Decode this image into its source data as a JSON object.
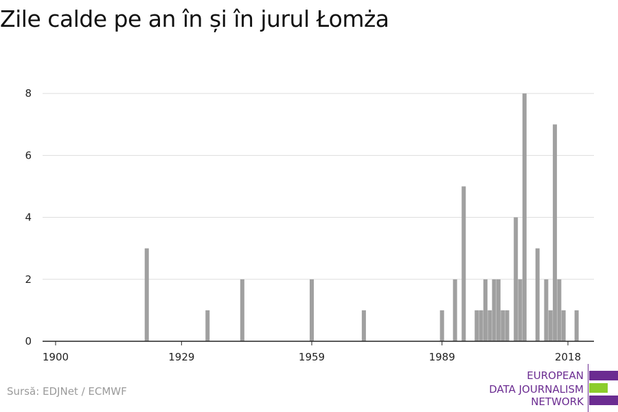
{
  "title": "Zile calde pe an în și în jurul Łomża",
  "source": "Sursă: EDJNet / ECMWF",
  "logo": {
    "lines": [
      "EUROPEAN",
      "DATA JOURNALISM",
      "NETWORK"
    ],
    "colors": [
      "#6b2c91",
      "#8ccd2c",
      "#6b2c91"
    ]
  },
  "chart_data": {
    "type": "bar",
    "title": "Zile calde pe an în și în jurul Łomża",
    "xlabel": "",
    "ylabel": "",
    "xlim": [
      1897,
      2024
    ],
    "ylim": [
      0,
      8.8
    ],
    "x_ticks": [
      1900,
      1929,
      1959,
      1989,
      2018
    ],
    "y_ticks": [
      0,
      2,
      4,
      6,
      8
    ],
    "grid": "horizontal",
    "bar_color": "#a0a0a0",
    "x": [
      1921,
      1935,
      1943,
      1959,
      1971,
      1989,
      1992,
      1994,
      1997,
      1998,
      1999,
      2000,
      2001,
      2002,
      2003,
      2004,
      2006,
      2007,
      2008,
      2011,
      2013,
      2014,
      2015,
      2016,
      2017,
      2020
    ],
    "values": [
      3,
      1,
      2,
      2,
      1,
      1,
      2,
      5,
      1,
      1,
      2,
      1,
      2,
      2,
      1,
      1,
      4,
      2,
      8,
      3,
      2,
      1,
      7,
      2,
      1,
      1
    ]
  }
}
